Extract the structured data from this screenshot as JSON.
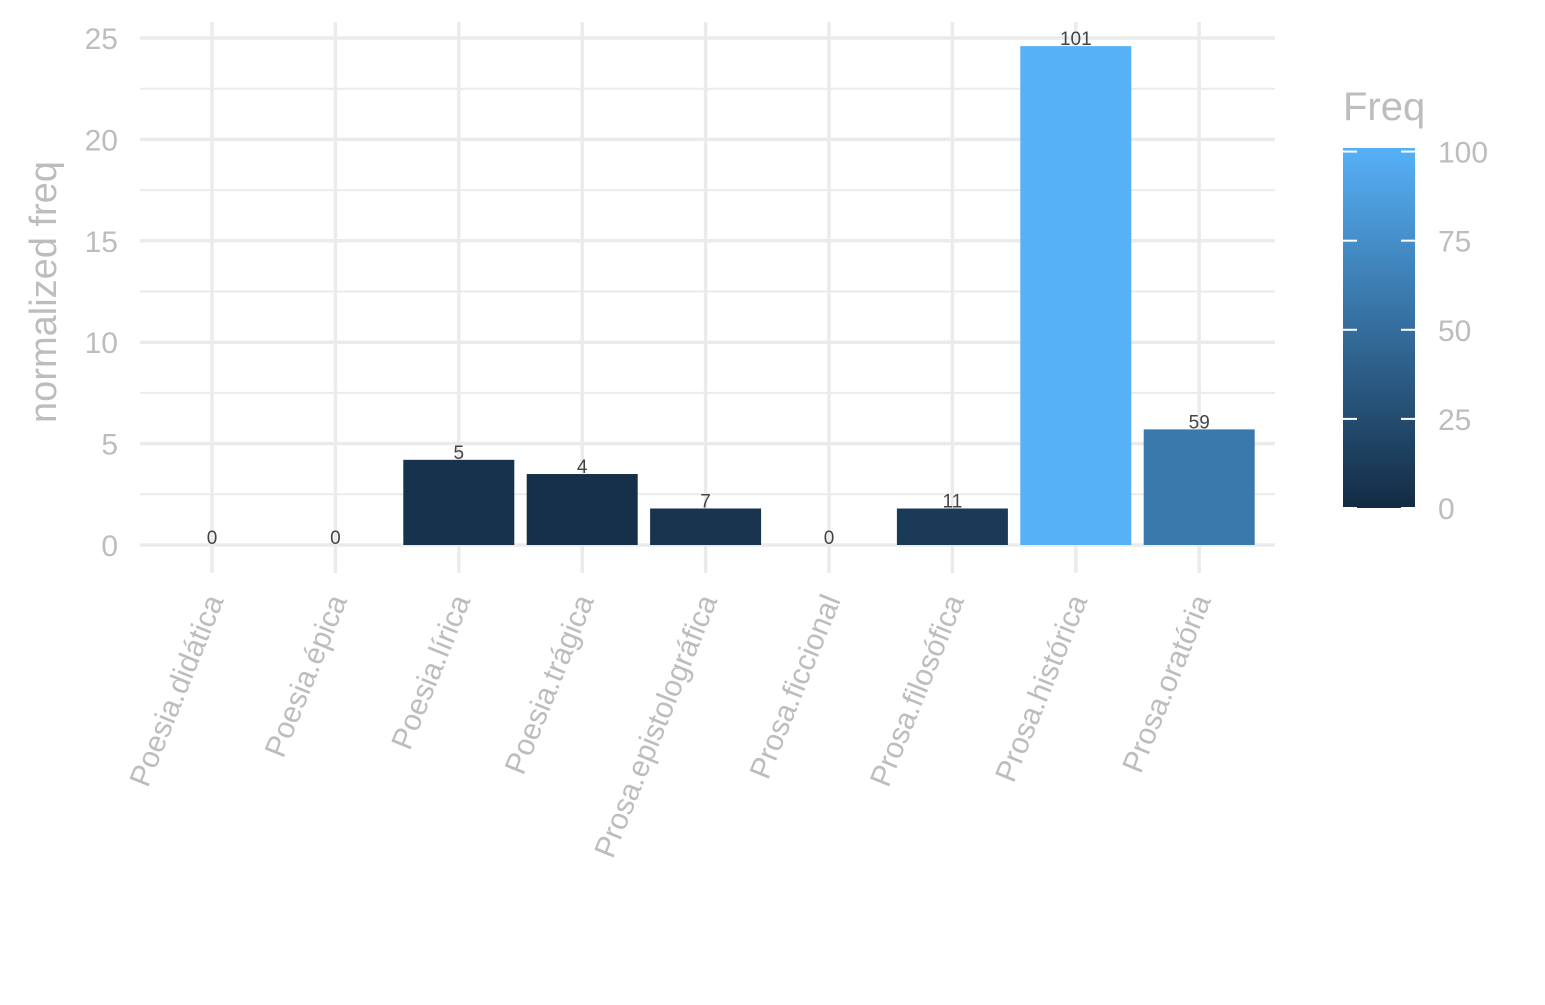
{
  "chart_data": {
    "type": "bar",
    "categories": [
      "Poesia.didática",
      "Poesia.épica",
      "Poesia.lírica",
      "Poesia.trágica",
      "Prosa.epistolográfica",
      "Prosa.ficcional",
      "Prosa.filosófica",
      "Prosa.histórica",
      "Prosa.oratória"
    ],
    "values": [
      0,
      0,
      4.2,
      3.5,
      1.8,
      0,
      1.8,
      24.6,
      5.7
    ],
    "labels": [
      "0",
      "0",
      "5",
      "4",
      "7",
      "0",
      "11",
      "101",
      "59"
    ],
    "freq": [
      0,
      0,
      5,
      4,
      7,
      0,
      11,
      101,
      59
    ],
    "ylabel": "normalized freq",
    "xlabel": "",
    "ylim": [
      0,
      25
    ],
    "yticks": [
      "0",
      "5",
      "10",
      "15",
      "20",
      "25"
    ],
    "grid": true,
    "legend": {
      "title": "Freq",
      "position": "right",
      "ticks": [
        "0",
        "25",
        "50",
        "75",
        "100"
      ],
      "low_color": "#132b43",
      "high_color": "#56b1f7"
    }
  }
}
